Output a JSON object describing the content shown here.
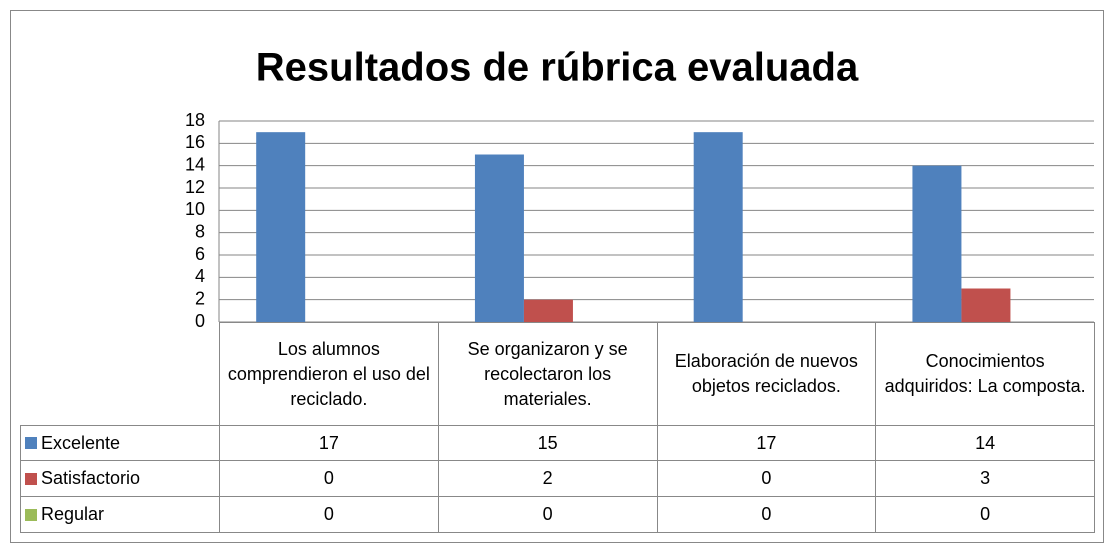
{
  "chart_data": {
    "type": "bar",
    "title": "Resultados de rúbrica evaluada",
    "categories": [
      "Los alumnos comprendieron el uso del reciclado.",
      "Se organizaron y se recolectaron los materiales.",
      "Elaboración de nuevos objetos reciclados.",
      "Conocimientos adquiridos: La composta."
    ],
    "series": [
      {
        "name": "Excelente",
        "color": "#4f81bd",
        "values": [
          17,
          15,
          17,
          14
        ]
      },
      {
        "name": "Satisfactorio",
        "color": "#c0504d",
        "values": [
          0,
          2,
          0,
          3
        ]
      },
      {
        "name": "Regular",
        "color": "#9bbb59",
        "values": [
          0,
          0,
          0,
          0
        ]
      }
    ],
    "ylim": [
      0,
      18
    ],
    "yticks": [
      0,
      2,
      4,
      6,
      8,
      10,
      12,
      14,
      16,
      18
    ],
    "grid": true
  }
}
